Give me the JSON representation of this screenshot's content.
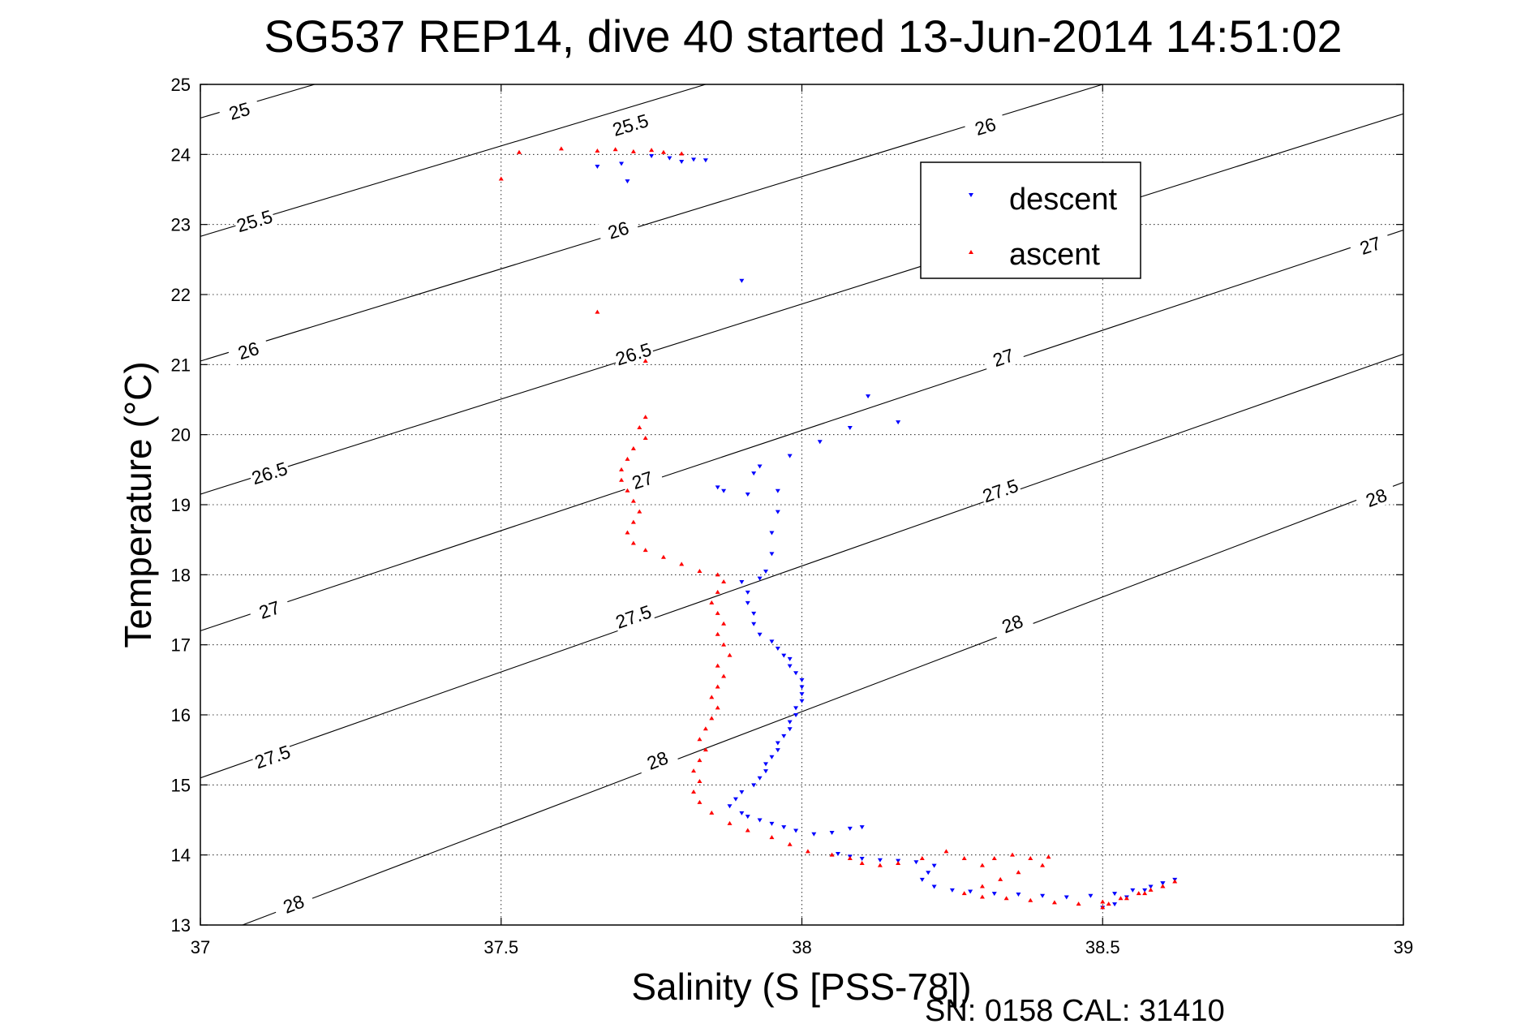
{
  "chart_data": {
    "type": "scatter",
    "title": "SG537 REP14, dive 40 started 13-Jun-2014 14:51:02",
    "xlabel": "Salinity (S [PSS-78])",
    "ylabel": "Temperature (°C)",
    "xlim": [
      37,
      39
    ],
    "ylim": [
      13,
      25
    ],
    "xticks": [
      "37",
      "37.5",
      "38",
      "38.5",
      "39"
    ],
    "yticks": [
      "13",
      "14",
      "15",
      "16",
      "17",
      "18",
      "19",
      "20",
      "21",
      "22",
      "23",
      "24",
      "25"
    ],
    "grid": true,
    "legend_position": "top-right",
    "footer": "SN: 0158  CAL: 31410",
    "contours": [
      {
        "level": "25",
        "points": [
          [
            37,
            24.52
          ],
          [
            37.19,
            25
          ]
        ],
        "labels": [
          [
            37.065,
            24.62
          ]
        ]
      },
      {
        "level": "25.5",
        "points": [
          [
            37,
            22.83
          ],
          [
            37.84,
            25
          ]
        ],
        "labels": [
          [
            37.09,
            23.05
          ],
          [
            37.715,
            24.42
          ]
        ]
      },
      {
        "level": "26",
        "points": [
          [
            37,
            21.05
          ],
          [
            38.5,
            25
          ]
        ],
        "labels": [
          [
            37.08,
            21.2
          ],
          [
            37.695,
            22.92
          ],
          [
            38.305,
            24.4
          ]
        ]
      },
      {
        "level": "26.5",
        "points": [
          [
            37,
            19.15
          ],
          [
            39,
            24.58
          ]
        ],
        "labels": [
          [
            37.115,
            19.45
          ],
          [
            37.72,
            21.15
          ]
        ]
      },
      {
        "level": "27",
        "points": [
          [
            37,
            17.2
          ],
          [
            39,
            22.92
          ]
        ],
        "labels": [
          [
            37.115,
            17.5
          ],
          [
            37.735,
            19.35
          ],
          [
            38.335,
            21.1
          ],
          [
            38.945,
            22.7
          ]
        ]
      },
      {
        "level": "27.5",
        "points": [
          [
            37,
            15.1
          ],
          [
            39,
            21.15
          ]
        ],
        "labels": [
          [
            37.12,
            15.4
          ],
          [
            37.72,
            17.4
          ],
          [
            38.33,
            19.2
          ]
        ]
      },
      {
        "level": "28",
        "points": [
          [
            37.07,
            13
          ],
          [
            39,
            19.32
          ]
        ],
        "labels": [
          [
            37.155,
            13.3
          ],
          [
            37.76,
            15.35
          ],
          [
            38.35,
            17.3
          ],
          [
            38.955,
            19.1
          ]
        ]
      }
    ],
    "series": [
      {
        "name": "descent",
        "color": "#0000ff",
        "marker": "triangle-down",
        "points": [
          [
            37.66,
            23.83
          ],
          [
            37.7,
            23.87
          ],
          [
            37.71,
            23.62
          ],
          [
            37.75,
            23.98
          ],
          [
            37.78,
            23.95
          ],
          [
            37.8,
            23.9
          ],
          [
            37.82,
            23.93
          ],
          [
            37.84,
            23.92
          ],
          [
            37.9,
            22.2
          ],
          [
            38.11,
            20.55
          ],
          [
            38.16,
            20.18
          ],
          [
            38.08,
            20.1
          ],
          [
            38.03,
            19.9
          ],
          [
            37.98,
            19.7
          ],
          [
            37.93,
            19.55
          ],
          [
            37.92,
            19.45
          ],
          [
            37.86,
            19.25
          ],
          [
            37.87,
            19.2
          ],
          [
            37.91,
            19.15
          ],
          [
            37.96,
            19.2
          ],
          [
            37.96,
            18.9
          ],
          [
            37.95,
            18.6
          ],
          [
            37.95,
            18.3
          ],
          [
            37.94,
            18.05
          ],
          [
            37.93,
            17.95
          ],
          [
            37.9,
            17.9
          ],
          [
            37.91,
            17.75
          ],
          [
            37.91,
            17.6
          ],
          [
            37.92,
            17.45
          ],
          [
            37.92,
            17.3
          ],
          [
            37.93,
            17.15
          ],
          [
            37.95,
            17.05
          ],
          [
            37.96,
            16.95
          ],
          [
            37.97,
            16.85
          ],
          [
            37.98,
            16.8
          ],
          [
            37.98,
            16.7
          ],
          [
            37.99,
            16.6
          ],
          [
            38.0,
            16.5
          ],
          [
            38.0,
            16.4
          ],
          [
            38.0,
            16.3
          ],
          [
            38.0,
            16.2
          ],
          [
            37.99,
            16.1
          ],
          [
            37.99,
            16.0
          ],
          [
            37.98,
            15.9
          ],
          [
            37.98,
            15.8
          ],
          [
            37.97,
            15.7
          ],
          [
            37.96,
            15.6
          ],
          [
            37.96,
            15.5
          ],
          [
            37.95,
            15.4
          ],
          [
            37.94,
            15.3
          ],
          [
            37.94,
            15.2
          ],
          [
            37.93,
            15.1
          ],
          [
            37.92,
            15.0
          ],
          [
            37.9,
            14.9
          ],
          [
            37.89,
            14.8
          ],
          [
            37.88,
            14.7
          ],
          [
            37.9,
            14.6
          ],
          [
            37.91,
            14.55
          ],
          [
            37.93,
            14.5
          ],
          [
            37.95,
            14.45
          ],
          [
            37.97,
            14.4
          ],
          [
            37.99,
            14.35
          ],
          [
            38.02,
            14.3
          ],
          [
            38.05,
            14.32
          ],
          [
            38.08,
            14.38
          ],
          [
            38.1,
            14.4
          ],
          [
            38.06,
            14.02
          ],
          [
            38.08,
            13.98
          ],
          [
            38.1,
            13.95
          ],
          [
            38.13,
            13.93
          ],
          [
            38.16,
            13.92
          ],
          [
            38.19,
            13.9
          ],
          [
            38.22,
            13.85
          ],
          [
            38.21,
            13.75
          ],
          [
            38.2,
            13.65
          ],
          [
            38.22,
            13.55
          ],
          [
            38.25,
            13.5
          ],
          [
            38.28,
            13.48
          ],
          [
            38.32,
            13.45
          ],
          [
            38.36,
            13.44
          ],
          [
            38.4,
            13.42
          ],
          [
            38.44,
            13.4
          ],
          [
            38.48,
            13.42
          ],
          [
            38.52,
            13.45
          ],
          [
            38.55,
            13.5
          ],
          [
            38.58,
            13.55
          ],
          [
            38.6,
            13.6
          ],
          [
            38.62,
            13.65
          ],
          [
            38.6,
            13.6
          ],
          [
            38.57,
            13.5
          ],
          [
            38.54,
            13.4
          ],
          [
            38.52,
            13.3
          ],
          [
            38.5,
            13.25
          ]
        ]
      },
      {
        "name": "ascent",
        "color": "#ff0000",
        "marker": "triangle-up",
        "points": [
          [
            37.5,
            23.65
          ],
          [
            37.53,
            24.03
          ],
          [
            37.6,
            24.08
          ],
          [
            37.66,
            24.05
          ],
          [
            37.69,
            24.07
          ],
          [
            37.72,
            24.04
          ],
          [
            37.75,
            24.06
          ],
          [
            37.77,
            24.03
          ],
          [
            37.8,
            24.01
          ],
          [
            37.66,
            21.75
          ],
          [
            37.74,
            21.05
          ],
          [
            37.74,
            20.25
          ],
          [
            37.73,
            20.1
          ],
          [
            37.74,
            19.95
          ],
          [
            37.72,
            19.8
          ],
          [
            37.71,
            19.65
          ],
          [
            37.7,
            19.5
          ],
          [
            37.7,
            19.35
          ],
          [
            37.71,
            19.2
          ],
          [
            37.72,
            19.05
          ],
          [
            37.73,
            18.9
          ],
          [
            37.72,
            18.75
          ],
          [
            37.71,
            18.6
          ],
          [
            37.72,
            18.45
          ],
          [
            37.74,
            18.35
          ],
          [
            37.77,
            18.25
          ],
          [
            37.8,
            18.15
          ],
          [
            37.83,
            18.05
          ],
          [
            37.86,
            18.0
          ],
          [
            37.87,
            17.9
          ],
          [
            37.86,
            17.75
          ],
          [
            37.85,
            17.6
          ],
          [
            37.86,
            17.45
          ],
          [
            37.87,
            17.3
          ],
          [
            37.86,
            17.15
          ],
          [
            37.87,
            17.0
          ],
          [
            37.88,
            16.85
          ],
          [
            37.86,
            16.7
          ],
          [
            37.87,
            16.55
          ],
          [
            37.86,
            16.4
          ],
          [
            37.85,
            16.25
          ],
          [
            37.86,
            16.1
          ],
          [
            37.85,
            15.95
          ],
          [
            37.84,
            15.8
          ],
          [
            37.83,
            15.65
          ],
          [
            37.84,
            15.5
          ],
          [
            37.83,
            15.35
          ],
          [
            37.82,
            15.2
          ],
          [
            37.83,
            15.05
          ],
          [
            37.82,
            14.9
          ],
          [
            37.83,
            14.75
          ],
          [
            37.85,
            14.6
          ],
          [
            37.88,
            14.45
          ],
          [
            37.91,
            14.35
          ],
          [
            37.95,
            14.25
          ],
          [
            37.98,
            14.15
          ],
          [
            38.01,
            14.05
          ],
          [
            38.05,
            14.0
          ],
          [
            38.08,
            13.95
          ],
          [
            38.1,
            13.88
          ],
          [
            38.13,
            13.85
          ],
          [
            38.16,
            13.88
          ],
          [
            38.2,
            13.95
          ],
          [
            38.24,
            14.05
          ],
          [
            38.27,
            13.95
          ],
          [
            38.3,
            13.85
          ],
          [
            38.32,
            13.95
          ],
          [
            38.35,
            14.0
          ],
          [
            38.38,
            13.95
          ],
          [
            38.41,
            13.97
          ],
          [
            38.4,
            13.85
          ],
          [
            38.36,
            13.75
          ],
          [
            38.33,
            13.65
          ],
          [
            38.3,
            13.55
          ],
          [
            38.27,
            13.45
          ],
          [
            38.3,
            13.4
          ],
          [
            38.34,
            13.38
          ],
          [
            38.38,
            13.35
          ],
          [
            38.42,
            13.32
          ],
          [
            38.46,
            13.3
          ],
          [
            38.5,
            13.33
          ],
          [
            38.53,
            13.38
          ],
          [
            38.56,
            13.45
          ],
          [
            38.58,
            13.5
          ],
          [
            38.6,
            13.55
          ],
          [
            38.62,
            13.62
          ],
          [
            38.6,
            13.55
          ],
          [
            38.57,
            13.45
          ],
          [
            38.54,
            13.38
          ],
          [
            38.51,
            13.3
          ],
          [
            38.5,
            13.25
          ]
        ]
      }
    ]
  }
}
